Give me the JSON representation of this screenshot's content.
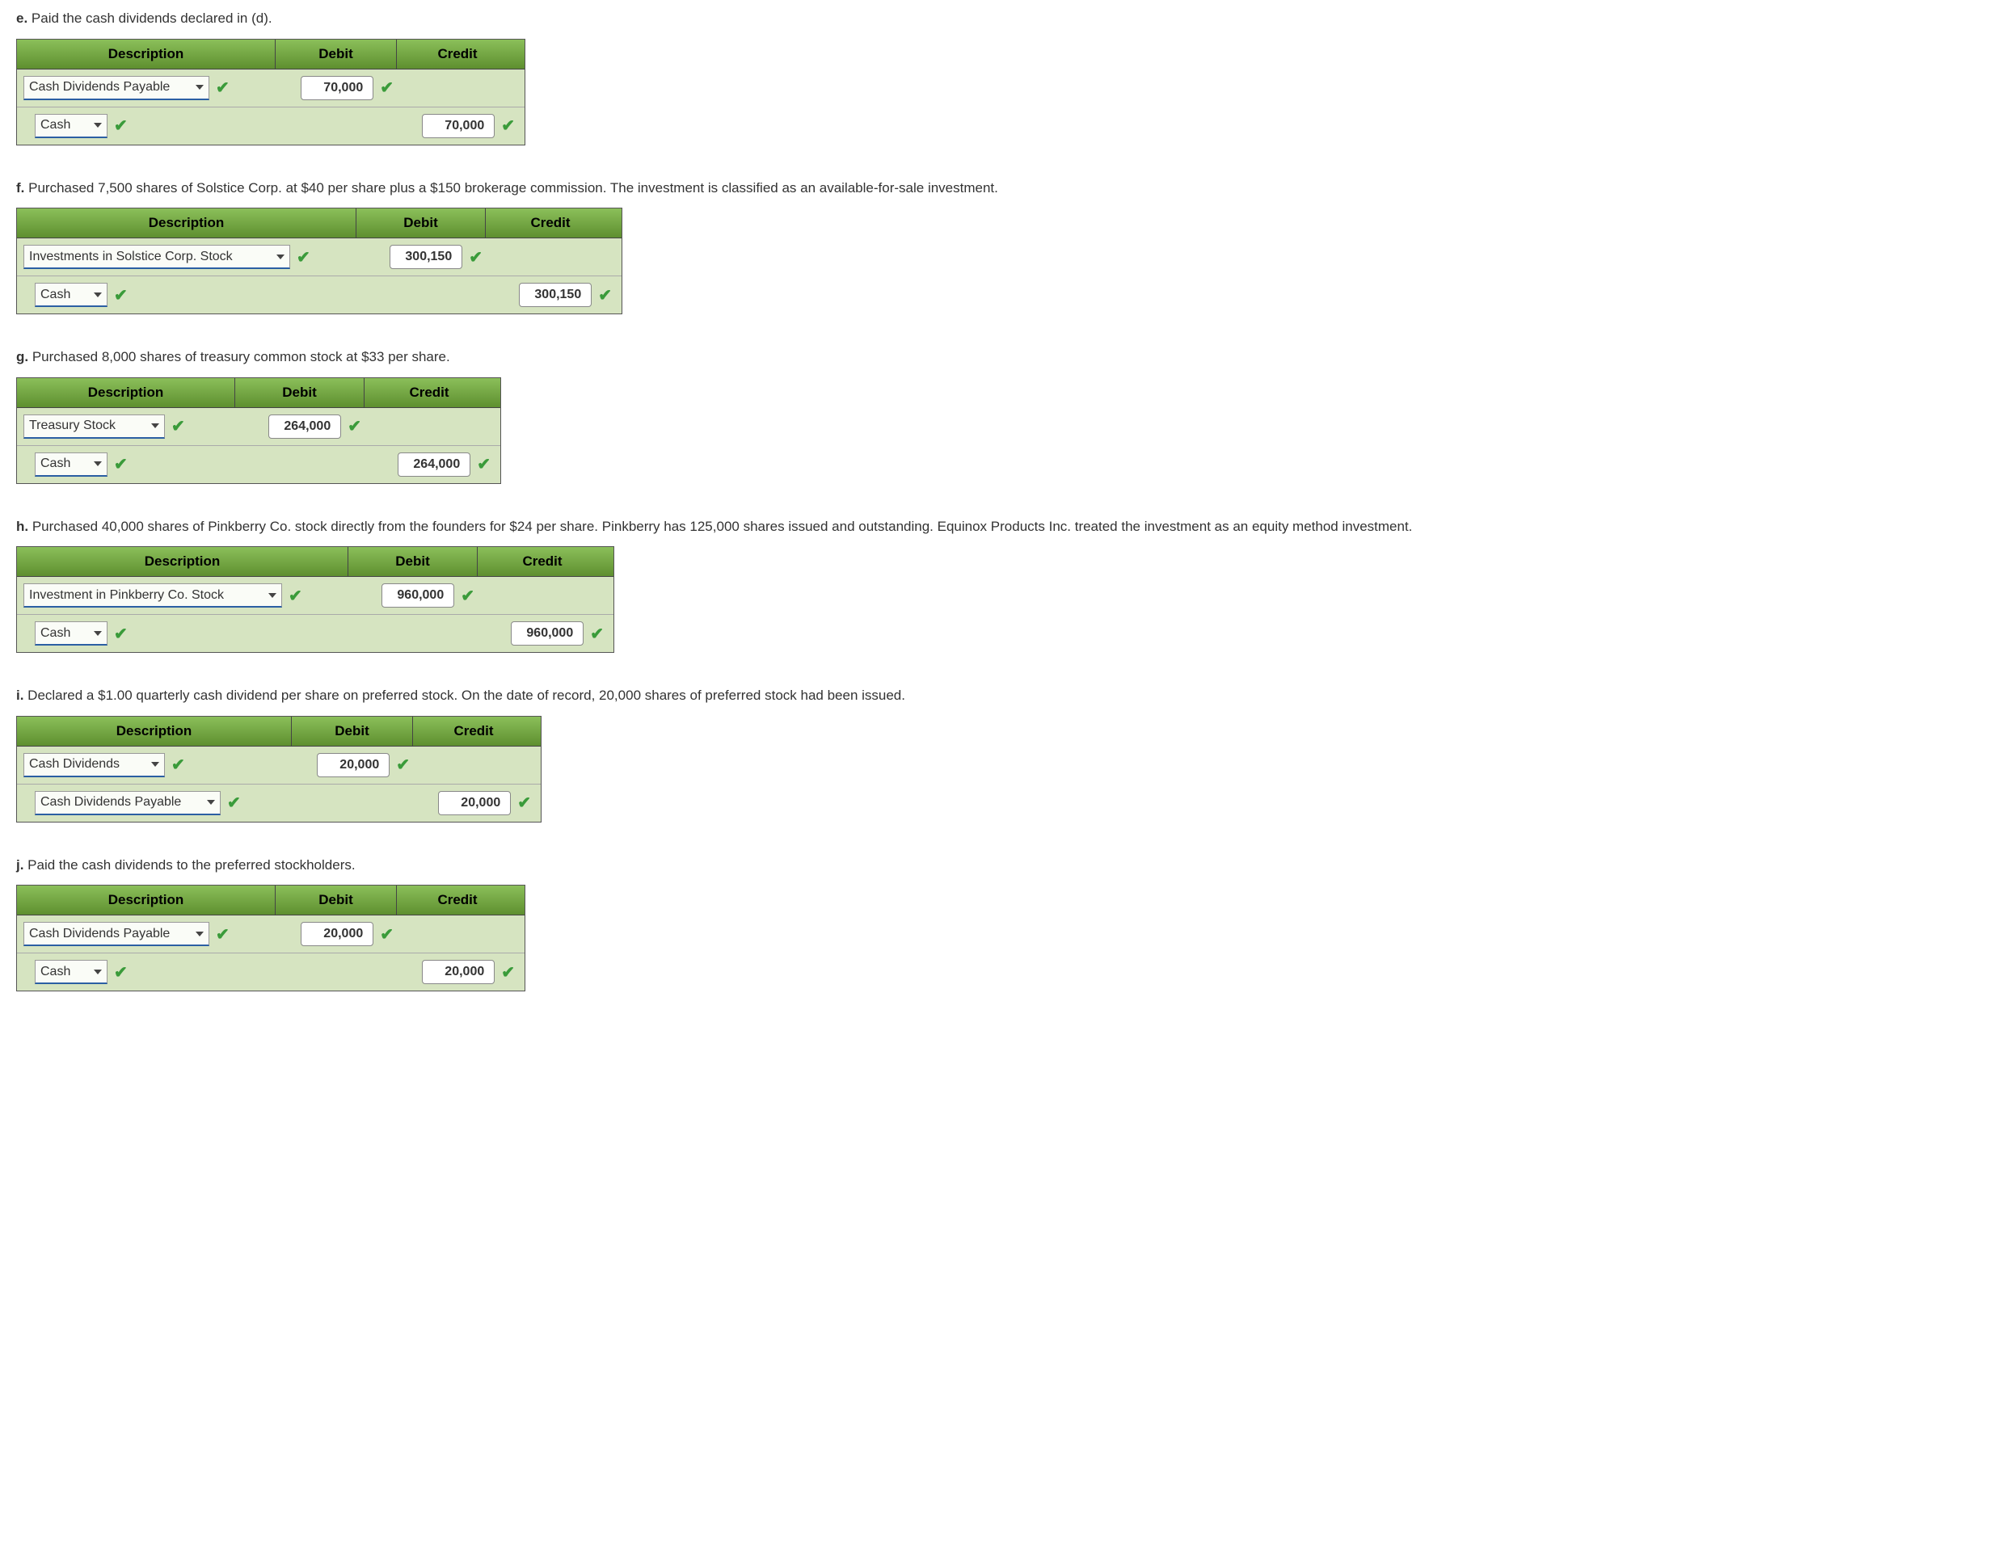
{
  "headers": {
    "description": "Description",
    "debit": "Debit",
    "credit": "Credit"
  },
  "entries": [
    {
      "letter": "e.",
      "prompt": "Paid the cash dividends declared in (d).",
      "col_widths": {
        "desc": 320,
        "debit": 150,
        "credit": 150
      },
      "rows": [
        {
          "indent": false,
          "account": "Cash Dividends Payable",
          "dropdown_width": 230,
          "debit": "70,000",
          "credit": ""
        },
        {
          "indent": true,
          "account": "Cash",
          "dropdown_width": 90,
          "debit": "",
          "credit": "70,000"
        }
      ]
    },
    {
      "letter": "f.",
      "prompt": "Purchased 7,500 shares of Solstice Corp. at $40 per share plus a $150 brokerage commission. The investment is classified as an available-for-sale investment.",
      "col_widths": {
        "desc": 420,
        "debit": 160,
        "credit": 160
      },
      "rows": [
        {
          "indent": false,
          "account": "Investments in Solstice Corp. Stock",
          "dropdown_width": 330,
          "debit": "300,150",
          "credit": ""
        },
        {
          "indent": true,
          "account": "Cash",
          "dropdown_width": 90,
          "debit": "",
          "credit": "300,150"
        }
      ]
    },
    {
      "letter": "g.",
      "prompt": "Purchased 8,000 shares of treasury common stock at $33 per share.",
      "col_widths": {
        "desc": 270,
        "debit": 160,
        "credit": 160
      },
      "rows": [
        {
          "indent": false,
          "account": "Treasury Stock",
          "dropdown_width": 175,
          "debit": "264,000",
          "credit": ""
        },
        {
          "indent": true,
          "account": "Cash",
          "dropdown_width": 90,
          "debit": "",
          "credit": "264,000"
        }
      ]
    },
    {
      "letter": "h.",
      "prompt": "Purchased 40,000 shares of Pinkberry Co. stock directly from the founders for $24 per share. Pinkberry has 125,000 shares issued and outstanding. Equinox Products Inc. treated the investment as an equity method investment.",
      "col_widths": {
        "desc": 410,
        "debit": 160,
        "credit": 160
      },
      "rows": [
        {
          "indent": false,
          "account": "Investment in Pinkberry Co. Stock",
          "dropdown_width": 320,
          "debit": "960,000",
          "credit": ""
        },
        {
          "indent": true,
          "account": "Cash",
          "dropdown_width": 90,
          "debit": "",
          "credit": "960,000"
        }
      ]
    },
    {
      "letter": "i.",
      "prompt": "Declared a $1.00 quarterly cash dividend per share on preferred stock. On the date of record, 20,000 shares of preferred stock had been issued.",
      "col_widths": {
        "desc": 340,
        "debit": 150,
        "credit": 150
      },
      "rows": [
        {
          "indent": false,
          "account": "Cash Dividends",
          "dropdown_width": 175,
          "debit": "20,000",
          "credit": ""
        },
        {
          "indent": true,
          "account": "Cash Dividends Payable",
          "dropdown_width": 230,
          "debit": "",
          "credit": "20,000"
        }
      ]
    },
    {
      "letter": "j.",
      "prompt": "Paid the cash dividends to the preferred stockholders.",
      "col_widths": {
        "desc": 320,
        "debit": 150,
        "credit": 150
      },
      "rows": [
        {
          "indent": false,
          "account": "Cash Dividends Payable",
          "dropdown_width": 230,
          "debit": "20,000",
          "credit": ""
        },
        {
          "indent": true,
          "account": "Cash",
          "dropdown_width": 90,
          "debit": "",
          "credit": "20,000"
        }
      ]
    }
  ]
}
